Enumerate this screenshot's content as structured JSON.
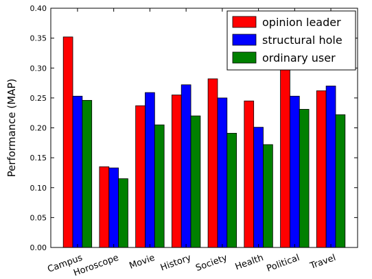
{
  "chart_data": {
    "type": "bar",
    "title": "",
    "xlabel": "",
    "ylabel": "Performance (MAP)",
    "ylim": [
      0,
      0.4
    ],
    "yticks": [
      "0.00",
      "0.05",
      "0.10",
      "0.15",
      "0.20",
      "0.25",
      "0.30",
      "0.35",
      "0.40"
    ],
    "categories": [
      "Campus",
      "Horoscope",
      "Movie",
      "History",
      "Society",
      "Health",
      "Political",
      "Travel"
    ],
    "series": [
      {
        "name": "opinion leader",
        "color": "#ff0000",
        "values": [
          0.352,
          0.135,
          0.237,
          0.255,
          0.282,
          0.245,
          0.298,
          0.262
        ]
      },
      {
        "name": "structural hole",
        "color": "#0000ff",
        "values": [
          0.253,
          0.133,
          0.259,
          0.272,
          0.25,
          0.201,
          0.253,
          0.27
        ]
      },
      {
        "name": "ordinary user",
        "color": "#008000",
        "values": [
          0.246,
          0.115,
          0.205,
          0.22,
          0.191,
          0.172,
          0.231,
          0.222
        ]
      }
    ],
    "legend_position": "top-right",
    "grid": false
  }
}
